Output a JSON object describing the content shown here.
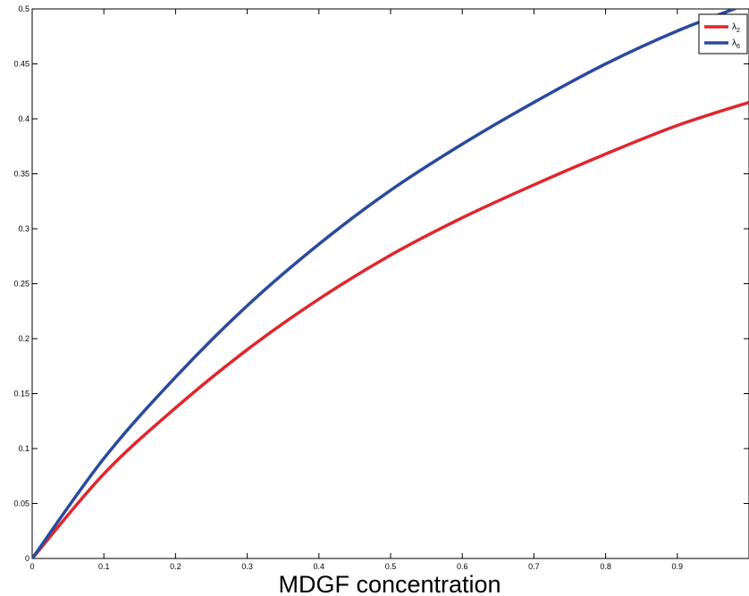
{
  "chart_data": {
    "type": "line",
    "title": "",
    "xlabel": "MDGF concentration",
    "ylabel": "",
    "xlim": [
      0,
      1
    ],
    "ylim": [
      0,
      0.5
    ],
    "xticks": [
      "0",
      "0.1",
      "0.2",
      "0.3",
      "0.4",
      "0.5",
      "0.6",
      "0.7",
      "0.8",
      "0.9"
    ],
    "yticks": [
      "0",
      "0.05",
      "0.1",
      "0.15",
      "0.2",
      "0.25",
      "0.3",
      "0.35",
      "0.4",
      "0.45",
      "0.5"
    ],
    "grid": false,
    "legend": "top-right",
    "x": [
      0,
      0.1,
      0.2,
      0.3,
      0.4,
      0.5,
      0.6,
      0.7,
      0.8,
      0.9,
      1.0
    ],
    "series": [
      {
        "name": "λ2",
        "label": {
          "base": "λ",
          "sub": "2"
        },
        "color": "#e0262c",
        "values": [
          0,
          0.077,
          0.137,
          0.19,
          0.236,
          0.276,
          0.31,
          0.34,
          0.368,
          0.394,
          0.415
        ]
      },
      {
        "name": "λ6",
        "label": {
          "base": "λ",
          "sub": "6"
        },
        "color": "#2b4a9c",
        "values": [
          0,
          0.091,
          0.165,
          0.23,
          0.286,
          0.335,
          0.377,
          0.415,
          0.45,
          0.48,
          0.505
        ]
      }
    ]
  }
}
